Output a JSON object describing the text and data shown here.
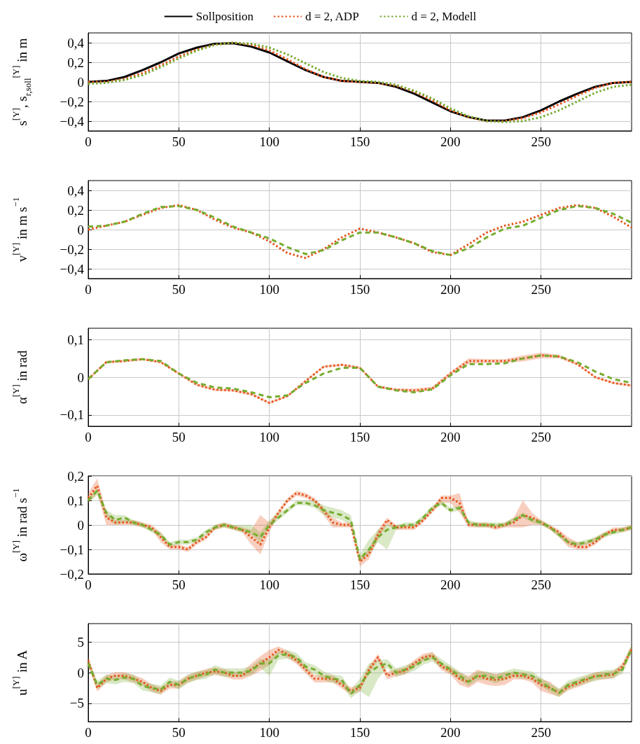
{
  "chart_data": [
    {
      "type": "line",
      "ylabel": "s$^{[Y]}$, s$_{r,soll}$$^{[Y]}$ in m",
      "legend": "top",
      "grid": true,
      "marker": "none",
      "xlim": [
        0,
        300
      ],
      "xticks": [
        0,
        50,
        100,
        150,
        200,
        250
      ],
      "ylim": [
        -0.5,
        0.5
      ],
      "yticks": [
        {
          "value": -0.4,
          "label": "−0,4"
        },
        {
          "value": -0.2,
          "label": "−0,2"
        },
        {
          "value": 0,
          "label": "0"
        },
        {
          "value": 0.2,
          "label": "0,2"
        },
        {
          "value": 0.4,
          "label": "0,4"
        }
      ],
      "x": [
        0,
        10,
        20,
        30,
        40,
        50,
        60,
        70,
        80,
        90,
        100,
        110,
        120,
        130,
        140,
        150,
        160,
        170,
        180,
        190,
        200,
        210,
        220,
        230,
        240,
        250,
        260,
        270,
        280,
        290,
        300
      ],
      "series": [
        {
          "name": "Sollposition",
          "color": "#000000",
          "line_style": "solid",
          "values": [
            0,
            0.01,
            0.05,
            0.12,
            0.2,
            0.29,
            0.35,
            0.39,
            0.395,
            0.36,
            0.3,
            0.21,
            0.12,
            0.05,
            0.01,
            0,
            -0.01,
            -0.05,
            -0.12,
            -0.21,
            -0.3,
            -0.36,
            -0.395,
            -0.395,
            -0.36,
            -0.29,
            -0.2,
            -0.12,
            -0.05,
            -0.01,
            0
          ]
        },
        {
          "name": "d = 2, ADP",
          "color": "#e5531a",
          "line_style": "dotted",
          "values": [
            0,
            0,
            0.03,
            0.09,
            0.17,
            0.26,
            0.33,
            0.38,
            0.4,
            0.38,
            0.32,
            0.23,
            0.13,
            0.05,
            0.01,
            0,
            -0.01,
            -0.04,
            -0.1,
            -0.19,
            -0.29,
            -0.36,
            -0.4,
            -0.4,
            -0.37,
            -0.31,
            -0.23,
            -0.14,
            -0.06,
            -0.01,
            0
          ]
        },
        {
          "name": "d = 2, Modell",
          "color": "#77ac30",
          "line_style": "dotted",
          "values": [
            -0.02,
            -0.01,
            0.02,
            0.07,
            0.15,
            0.24,
            0.32,
            0.38,
            0.4,
            0.39,
            0.35,
            0.28,
            0.19,
            0.1,
            0.04,
            0.01,
            0,
            -0.03,
            -0.09,
            -0.17,
            -0.27,
            -0.35,
            -0.4,
            -0.41,
            -0.4,
            -0.36,
            -0.29,
            -0.2,
            -0.11,
            -0.05,
            -0.03
          ]
        }
      ]
    },
    {
      "type": "line",
      "ylabel": "v$^{[Y]}$ in m s$^{−1}$",
      "grid": true,
      "marker": "none",
      "xlim": [
        0,
        300
      ],
      "xticks": [
        0,
        50,
        100,
        150,
        200,
        250
      ],
      "ylim": [
        -0.5,
        0.5
      ],
      "yticks": [
        {
          "value": -0.4,
          "label": "−0,4"
        },
        {
          "value": -0.2,
          "label": "−0,2"
        },
        {
          "value": 0,
          "label": "0"
        },
        {
          "value": 0.2,
          "label": "0,2"
        },
        {
          "value": 0.4,
          "label": "0,4"
        }
      ],
      "x": [
        0,
        10,
        20,
        30,
        40,
        50,
        60,
        70,
        80,
        90,
        100,
        110,
        120,
        130,
        140,
        150,
        160,
        170,
        180,
        190,
        200,
        210,
        220,
        230,
        240,
        250,
        260,
        270,
        280,
        290,
        300
      ],
      "series": [
        {
          "color": "#e5531a",
          "line_style": "dotted",
          "values": [
            0,
            0.04,
            0.08,
            0.15,
            0.22,
            0.25,
            0.2,
            0.1,
            0.02,
            -0.03,
            -0.12,
            -0.24,
            -0.29,
            -0.2,
            -0.08,
            0.01,
            -0.03,
            -0.08,
            -0.14,
            -0.23,
            -0.26,
            -0.15,
            -0.03,
            0.04,
            0.08,
            0.15,
            0.22,
            0.25,
            0.22,
            0.13,
            0.02
          ]
        },
        {
          "color": "#77ac30",
          "line_style": "dashed",
          "values": [
            0.03,
            0.04,
            0.08,
            0.16,
            0.23,
            0.24,
            0.2,
            0.12,
            0.03,
            -0.03,
            -0.09,
            -0.18,
            -0.25,
            -0.21,
            -0.11,
            -0.03,
            -0.03,
            -0.08,
            -0.14,
            -0.22,
            -0.26,
            -0.19,
            -0.08,
            0.01,
            0.04,
            0.12,
            0.2,
            0.24,
            0.22,
            0.16,
            0.07
          ]
        }
      ]
    },
    {
      "type": "line",
      "ylabel": "α$^{[Y]}$ in rad",
      "grid": true,
      "marker": "none",
      "xlim": [
        0,
        300
      ],
      "xticks": [
        0,
        50,
        100,
        150,
        200,
        250
      ],
      "ylim": [
        -0.13,
        0.13
      ],
      "yticks": [
        {
          "value": -0.1,
          "label": "−0,1"
        },
        {
          "value": 0,
          "label": "0"
        },
        {
          "value": 0.1,
          "label": "0,1"
        }
      ],
      "x": [
        0,
        10,
        20,
        30,
        40,
        50,
        60,
        70,
        80,
        90,
        100,
        110,
        120,
        130,
        140,
        150,
        160,
        170,
        180,
        190,
        200,
        210,
        220,
        230,
        240,
        250,
        260,
        270,
        280,
        290,
        300
      ],
      "series": [
        {
          "color": "#e5531a",
          "line_style": "dotted",
          "values": [
            -0.005,
            0.04,
            0.043,
            0.048,
            0.04,
            0.01,
            -0.02,
            -0.033,
            -0.035,
            -0.045,
            -0.068,
            -0.05,
            -0.01,
            0.028,
            0.033,
            0.025,
            -0.025,
            -0.033,
            -0.035,
            -0.03,
            0.01,
            0.043,
            0.043,
            0.043,
            0.05,
            0.058,
            0.055,
            0.035,
            0,
            -0.015,
            -0.022
          ],
          "lower": [
            -0.008,
            0.037,
            0.04,
            0.045,
            0.037,
            0.007,
            -0.023,
            -0.036,
            -0.038,
            -0.048,
            -0.071,
            -0.053,
            -0.013,
            0.025,
            0.03,
            0.022,
            -0.028,
            -0.036,
            -0.04,
            -0.035,
            0.005,
            0.035,
            0.038,
            0.038,
            0.042,
            0.05,
            0.05,
            0.032,
            -0.003,
            -0.018,
            -0.025
          ],
          "upper": [
            -0.002,
            0.043,
            0.046,
            0.051,
            0.043,
            0.013,
            -0.017,
            -0.03,
            -0.032,
            -0.042,
            -0.065,
            -0.047,
            -0.007,
            0.031,
            0.036,
            0.028,
            -0.022,
            -0.03,
            -0.03,
            -0.025,
            0.015,
            0.05,
            0.048,
            0.048,
            0.058,
            0.065,
            0.06,
            0.038,
            0.003,
            -0.012,
            -0.019
          ]
        },
        {
          "color": "#77ac30",
          "line_style": "dashed",
          "values": [
            -0.005,
            0.04,
            0.045,
            0.048,
            0.043,
            0.01,
            -0.015,
            -0.027,
            -0.03,
            -0.04,
            -0.053,
            -0.048,
            -0.015,
            0.01,
            0.025,
            0.025,
            -0.025,
            -0.035,
            -0.04,
            -0.032,
            0.005,
            0.035,
            0.035,
            0.037,
            0.05,
            0.058,
            0.055,
            0.04,
            0.015,
            -0.005,
            -0.015
          ]
        }
      ]
    },
    {
      "type": "line",
      "ylabel": "ω$^{[Y]}$ in rad s$^{−1}$",
      "grid": true,
      "marker": "none",
      "xlim": [
        0,
        300
      ],
      "xticks": [
        0,
        50,
        100,
        150,
        200,
        250
      ],
      "ylim": [
        -0.2,
        0.2
      ],
      "yticks": [
        {
          "value": -0.2,
          "label": "−0,2"
        },
        {
          "value": -0.1,
          "label": "−0,1"
        },
        {
          "value": 0,
          "label": "0"
        },
        {
          "value": 0.1,
          "label": "0,1"
        },
        {
          "value": 0.2,
          "label": "0,2"
        }
      ],
      "x": [
        0,
        5,
        10,
        15,
        20,
        25,
        30,
        35,
        40,
        45,
        50,
        55,
        60,
        65,
        70,
        75,
        80,
        85,
        90,
        95,
        100,
        105,
        110,
        115,
        120,
        125,
        130,
        135,
        140,
        145,
        150,
        155,
        160,
        165,
        170,
        175,
        180,
        185,
        190,
        195,
        200,
        205,
        210,
        215,
        220,
        225,
        230,
        235,
        240,
        245,
        250,
        255,
        260,
        265,
        270,
        275,
        280,
        285,
        290,
        295,
        300
      ],
      "series": [
        {
          "color": "#e5531a",
          "line_style": "dotted",
          "values": [
            0.11,
            0.16,
            0.03,
            0.01,
            0.01,
            0.01,
            0,
            -0.01,
            -0.05,
            -0.09,
            -0.09,
            -0.1,
            -0.07,
            -0.05,
            -0.01,
            0,
            -0.01,
            -0.02,
            -0.05,
            -0.08,
            -0.01,
            0.05,
            0.1,
            0.13,
            0.12,
            0.1,
            0.06,
            0.01,
            0,
            0,
            -0.15,
            -0.12,
            -0.04,
            0.02,
            -0.01,
            -0.01,
            -0.01,
            0.02,
            0.06,
            0.11,
            0.11,
            0.09,
            0,
            0,
            0,
            -0.01,
            0,
            0.01,
            0.04,
            0.03,
            0.01,
            -0.01,
            -0.03,
            -0.07,
            -0.09,
            -0.09,
            -0.07,
            -0.04,
            -0.02,
            -0.02,
            -0.01
          ],
          "lower": [
            0.09,
            0.13,
            0,
            0,
            0,
            0,
            -0.01,
            -0.02,
            -0.07,
            -0.1,
            -0.1,
            -0.11,
            -0.08,
            -0.06,
            -0.02,
            -0.01,
            -0.02,
            -0.03,
            -0.08,
            -0.12,
            -0.03,
            0.04,
            0.09,
            0.12,
            0.11,
            0.09,
            0.04,
            -0.01,
            -0.01,
            -0.01,
            -0.17,
            -0.14,
            -0.06,
            0,
            -0.02,
            -0.02,
            -0.02,
            0.01,
            0.05,
            0.09,
            0.09,
            0.05,
            -0.01,
            -0.01,
            -0.01,
            -0.02,
            -0.01,
            -0.01,
            -0.01,
            0,
            0,
            -0.02,
            -0.05,
            -0.09,
            -0.1,
            -0.1,
            -0.08,
            -0.05,
            -0.03,
            -0.03,
            -0.02
          ],
          "upper": [
            0.13,
            0.19,
            0.05,
            0.02,
            0.02,
            0.02,
            0.01,
            0,
            -0.03,
            -0.08,
            -0.08,
            -0.09,
            -0.06,
            -0.04,
            0,
            0.01,
            0,
            -0.01,
            -0.02,
            0.04,
            0.01,
            0.06,
            0.11,
            0.14,
            0.13,
            0.11,
            0.07,
            0.03,
            0.01,
            0.01,
            -0.13,
            -0.1,
            -0.02,
            0.03,
            0,
            0,
            0,
            0.03,
            0.07,
            0.12,
            0.12,
            0.13,
            0.01,
            0.01,
            0.01,
            0,
            0.01,
            0.03,
            0.1,
            0.05,
            0.02,
            0,
            -0.02,
            -0.05,
            -0.07,
            -0.07,
            -0.05,
            -0.03,
            -0.01,
            -0.01,
            0
          ]
        },
        {
          "color": "#77ac30",
          "line_style": "dashed",
          "values": [
            0.1,
            0.14,
            0.05,
            0.02,
            0.03,
            0.01,
            0,
            -0.02,
            -0.04,
            -0.08,
            -0.07,
            -0.07,
            -0.06,
            -0.03,
            -0.01,
            0,
            -0.01,
            -0.02,
            -0.03,
            -0.05,
            0,
            0.03,
            0.06,
            0.09,
            0.09,
            0.08,
            0.06,
            0.05,
            0.04,
            0.02,
            -0.14,
            -0.1,
            -0.05,
            -0.02,
            -0.01,
            0,
            0,
            0.03,
            0.07,
            0.09,
            0.06,
            0.07,
            0.01,
            0,
            0,
            0,
            0,
            0.02,
            0.04,
            0.02,
            0.01,
            -0.01,
            -0.04,
            -0.07,
            -0.08,
            -0.07,
            -0.06,
            -0.04,
            -0.03,
            -0.02,
            -0.01
          ],
          "lower": [
            0.09,
            0.12,
            0.03,
            0,
            0.01,
            0,
            -0.01,
            -0.03,
            -0.05,
            -0.09,
            -0.08,
            -0.08,
            -0.07,
            -0.04,
            -0.02,
            -0.01,
            -0.02,
            -0.03,
            -0.04,
            -0.07,
            -0.01,
            0.02,
            0.05,
            0.08,
            0.08,
            0.07,
            0.04,
            0.03,
            0.02,
            0,
            -0.15,
            -0.12,
            -0.07,
            -0.1,
            -0.02,
            -0.01,
            -0.01,
            0.02,
            0.06,
            0.08,
            0.05,
            0.06,
            0,
            -0.01,
            -0.01,
            -0.01,
            -0.01,
            0.01,
            0.03,
            0.01,
            0,
            -0.02,
            -0.05,
            -0.08,
            -0.09,
            -0.08,
            -0.07,
            -0.05,
            -0.04,
            -0.03,
            -0.02
          ],
          "upper": [
            0.11,
            0.15,
            0.06,
            0.04,
            0.04,
            0.02,
            0.01,
            -0.01,
            -0.03,
            -0.07,
            -0.06,
            -0.06,
            -0.05,
            -0.02,
            0,
            0.01,
            0,
            0,
            0,
            -0.03,
            0.02,
            0.05,
            0.07,
            0.1,
            0.1,
            0.1,
            0.08,
            0.07,
            0.06,
            0.04,
            -0.12,
            -0.06,
            -0.02,
            0,
            0,
            0.01,
            0.01,
            0.04,
            0.08,
            0.1,
            0.07,
            0.08,
            0.02,
            0.01,
            0.01,
            0.01,
            0.01,
            0.03,
            0.05,
            0.03,
            0.02,
            0,
            -0.03,
            -0.06,
            -0.07,
            -0.06,
            -0.05,
            -0.03,
            -0.02,
            -0.01,
            0
          ]
        }
      ]
    },
    {
      "type": "line",
      "ylabel": "u$^{[Y]}$ in A",
      "grid": true,
      "marker": "none",
      "xlim": [
        0,
        300
      ],
      "xticks": [
        0,
        50,
        100,
        150,
        200,
        250
      ],
      "ylim": [
        -8,
        8
      ],
      "yticks": [
        {
          "value": -5,
          "label": "−5"
        },
        {
          "value": 0,
          "label": "0"
        },
        5
      ],
      "x": [
        0,
        5,
        10,
        15,
        20,
        25,
        30,
        35,
        40,
        45,
        50,
        55,
        60,
        65,
        70,
        75,
        80,
        85,
        90,
        95,
        100,
        105,
        110,
        115,
        120,
        125,
        130,
        135,
        140,
        145,
        150,
        155,
        160,
        165,
        170,
        175,
        180,
        185,
        190,
        195,
        200,
        205,
        210,
        215,
        220,
        225,
        230,
        235,
        240,
        245,
        250,
        255,
        260,
        265,
        270,
        275,
        280,
        285,
        290,
        295,
        300
      ],
      "series": [
        {
          "color": "#e5531a",
          "line_style": "dotted",
          "values": [
            2,
            -2.5,
            -1,
            -0.5,
            -0.5,
            -1,
            -1.5,
            -2.5,
            -3,
            -2,
            -2,
            -1,
            -0.5,
            0,
            0.2,
            0,
            -0.5,
            -0.5,
            0.5,
            1.5,
            2.5,
            3.7,
            3,
            2,
            0.5,
            -1,
            -1,
            -1,
            -2,
            -3,
            -2.5,
            0.5,
            2.5,
            -0.5,
            0,
            0.3,
            1.5,
            2.5,
            2.8,
            1,
            0.3,
            -1,
            -1.5,
            -0.5,
            -1,
            -1.2,
            -1,
            -0.5,
            -0.5,
            -1,
            -2,
            -2.5,
            -3.3,
            -2.3,
            -1.8,
            -1.2,
            -0.5,
            -0.5,
            -0.3,
            1,
            3.8
          ],
          "lower": [
            1.4,
            -3.1,
            -1.6,
            -1.1,
            -1.1,
            -1.6,
            -2.1,
            -3.1,
            -3.6,
            -2.6,
            -2.6,
            -1.6,
            -1.1,
            -0.6,
            -0.4,
            -0.6,
            -1.1,
            -1.1,
            -0.5,
            0.3,
            1.3,
            3.1,
            2.4,
            1.4,
            -0.1,
            -1.6,
            -1.6,
            -1.6,
            -2.6,
            -3.6,
            -3.1,
            -0.1,
            1.9,
            -1.1,
            -0.6,
            -0.3,
            0.9,
            1.9,
            2.2,
            0.4,
            -0.3,
            -2,
            -2.5,
            -1.5,
            -2,
            -2.2,
            -2,
            -1.1,
            -1.1,
            -1.6,
            -3,
            -3.5,
            -3.9,
            -2.9,
            -2.4,
            -1.8,
            -1.1,
            -1.1,
            -0.9,
            0.4,
            3.2
          ],
          "upper": [
            2.6,
            -1.9,
            -0.4,
            0.1,
            0.1,
            -0.4,
            -0.9,
            -1.9,
            -2.4,
            -1.4,
            -1.4,
            -0.4,
            0.1,
            0.6,
            0.8,
            0.6,
            0.1,
            0.1,
            1.5,
            2.7,
            3.7,
            4.3,
            3.6,
            2.6,
            1.1,
            -0.4,
            -0.4,
            -0.4,
            -1.4,
            -2.4,
            -1.9,
            1.1,
            3.1,
            0.1,
            0.6,
            0.9,
            2.1,
            3.1,
            3.4,
            1.6,
            0.9,
            0,
            -0.5,
            0.5,
            0,
            -0.2,
            0,
            0.1,
            0.1,
            -0.4,
            -1,
            -1.5,
            -2.7,
            -1.7,
            -1.2,
            -0.6,
            0.1,
            0.1,
            0.3,
            1.6,
            4.4
          ]
        },
        {
          "color": "#77ac30",
          "line_style": "dashed",
          "values": [
            1.5,
            -2,
            -1,
            -1.2,
            -0.8,
            -1,
            -2.2,
            -2.5,
            -2.8,
            -1.5,
            -2,
            -1,
            -0.5,
            -0.3,
            0.5,
            0,
            0,
            0,
            0.3,
            1.5,
            1.5,
            2.8,
            3,
            2.5,
            1,
            0.5,
            -0.5,
            -1,
            -1.2,
            -3.5,
            -2,
            0,
            1,
            1.5,
            0,
            0.5,
            1,
            2,
            2.5,
            1.5,
            0.5,
            -0.5,
            -1.5,
            -0.5,
            -0.5,
            -1,
            -0.5,
            0,
            -0.3,
            -0.5,
            -1.5,
            -2.5,
            -3.3,
            -2,
            -1.5,
            -1,
            -0.7,
            -0.3,
            -0.2,
            0.5,
            4
          ],
          "lower": [
            0.8,
            -2.7,
            -1.7,
            -1.9,
            -1.5,
            -1.7,
            -2.9,
            -3.2,
            -3.5,
            -2.2,
            -2.7,
            -1.7,
            -1.2,
            -1,
            -0.2,
            -0.7,
            -0.7,
            -0.7,
            -0.4,
            0.8,
            -0.5,
            2.1,
            2.3,
            1.8,
            0.3,
            -0.2,
            -1.2,
            -1.7,
            -1.9,
            -4.2,
            -3,
            -4,
            -1,
            0.8,
            -0.7,
            -0.2,
            0.3,
            1.3,
            1.8,
            0.8,
            -0.2,
            -1.2,
            -2.2,
            -1.2,
            -1.2,
            -1.7,
            -1.2,
            -0.7,
            -1,
            -1.2,
            -2.2,
            -3.2,
            -4,
            -2.7,
            -2.2,
            -1.7,
            -1.4,
            -1,
            -0.9,
            -0.2,
            3.3
          ],
          "upper": [
            2.2,
            -1.3,
            -0.3,
            -0.5,
            -0.1,
            -0.3,
            -1.5,
            -1.8,
            -2.1,
            -0.8,
            -1.3,
            -0.3,
            0.2,
            0.4,
            1.2,
            0.7,
            0.7,
            0.7,
            1,
            2.2,
            2.2,
            3.5,
            3.7,
            3.2,
            1.7,
            1.2,
            0.2,
            -0.3,
            -0.5,
            -2.8,
            -1,
            1.5,
            2,
            2.2,
            0.7,
            1.2,
            1.7,
            2.7,
            3.2,
            2.2,
            1.2,
            0.2,
            -0.8,
            0.2,
            0.2,
            -0.3,
            0.2,
            0.7,
            0.4,
            0.2,
            -0.8,
            -1.8,
            -2.6,
            -1.3,
            -0.8,
            -0.3,
            0,
            0.4,
            0.5,
            1.2,
            4.7
          ]
        }
      ]
    }
  ]
}
